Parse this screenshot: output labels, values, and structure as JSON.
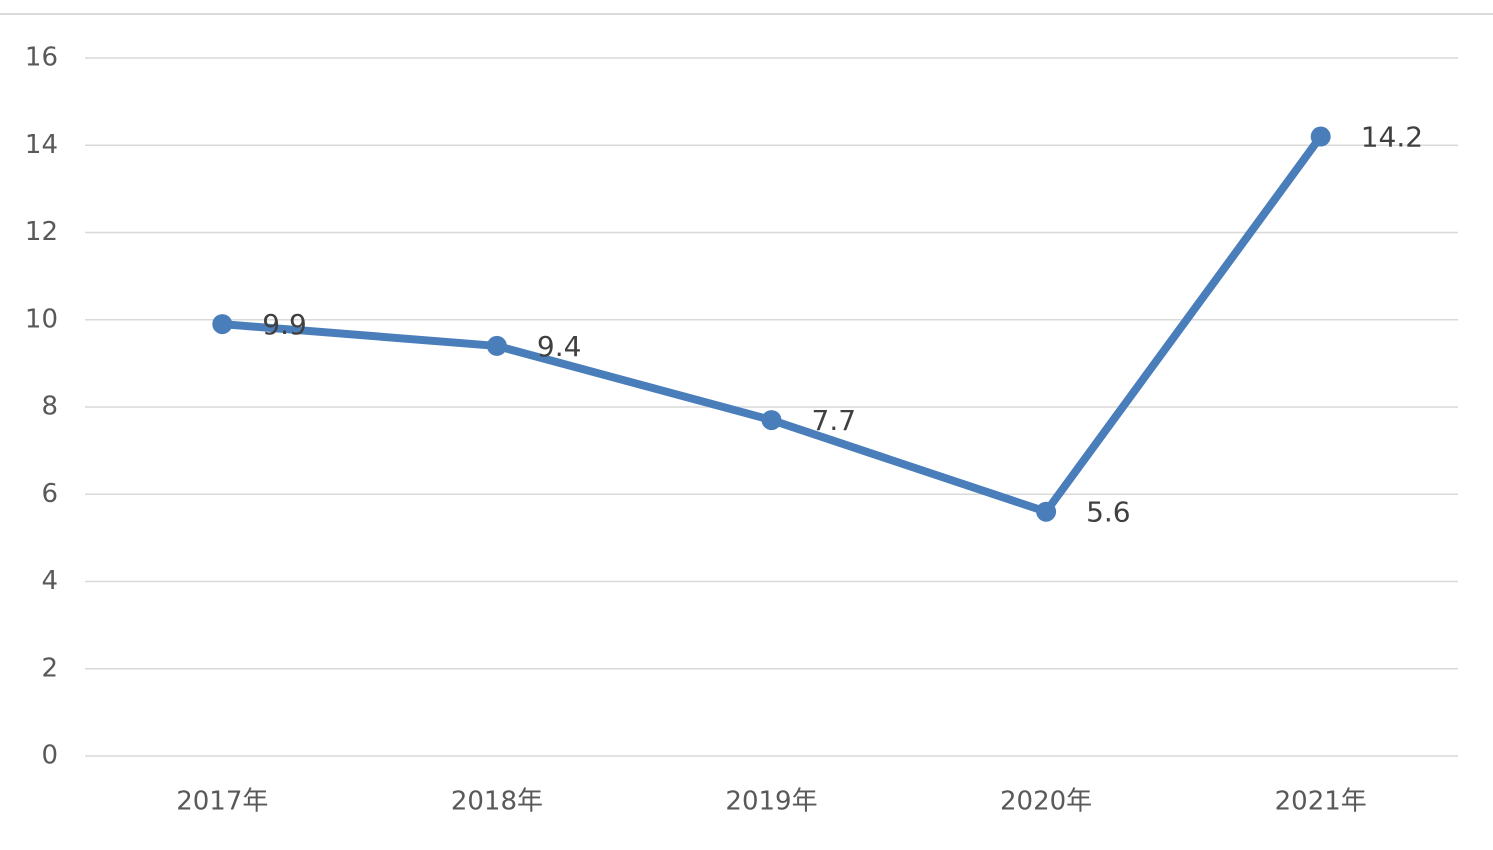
{
  "chart_data": {
    "type": "line",
    "categories": [
      "2017年",
      "2018年",
      "2019年",
      "2020年",
      "2021年"
    ],
    "series": [
      {
        "color": "#4a7ebb",
        "values": [
          9.9,
          9.4,
          7.7,
          5.6,
          14.2
        ]
      }
    ],
    "ylim": [
      0,
      16
    ],
    "yticks": [
      0,
      2,
      4,
      6,
      8,
      10,
      12,
      14,
      16
    ],
    "grid": true,
    "data_labels": true
  }
}
